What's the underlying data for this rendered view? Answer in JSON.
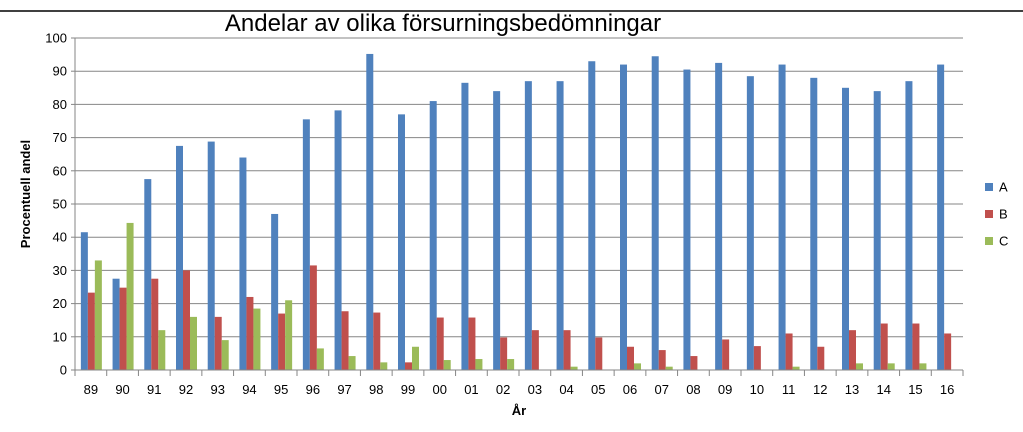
{
  "chart_data": {
    "type": "bar",
    "title": "Andelar av olika försurningsbedömningar",
    "xlabel": "År",
    "ylabel": "Procentuell andel",
    "ylim": [
      0,
      100
    ],
    "yticks": [
      "0",
      "10",
      "20",
      "30",
      "40",
      "50",
      "60",
      "70",
      "80",
      "90",
      "100"
    ],
    "grid": true,
    "legend": "right",
    "categories": [
      "89",
      "90",
      "91",
      "92",
      "93",
      "94",
      "95",
      "96",
      "97",
      "98",
      "99",
      "00",
      "01",
      "02",
      "03",
      "04",
      "05",
      "06",
      "07",
      "08",
      "09",
      "10",
      "11",
      "12",
      "13",
      "14",
      "15",
      "16"
    ],
    "series": [
      {
        "name": "A",
        "color": "#4F81BD",
        "values": [
          41.5,
          27.5,
          57.5,
          67.5,
          68.8,
          64,
          47,
          75.5,
          78.2,
          95.2,
          77,
          81,
          86.5,
          84,
          87,
          87,
          93,
          92,
          94.5,
          90.5,
          92.5,
          88.5,
          92,
          88,
          85,
          84,
          87,
          92
        ]
      },
      {
        "name": "B",
        "color": "#C0504D",
        "values": [
          23.3,
          24.8,
          27.5,
          30,
          16,
          22,
          17,
          31.5,
          17.7,
          17.3,
          2.3,
          15.8,
          15.8,
          9.8,
          12,
          12,
          9.8,
          7,
          6,
          4.2,
          9.2,
          7.2,
          11,
          7,
          12,
          14,
          14,
          11
        ]
      },
      {
        "name": "C",
        "color": "#9BBB59",
        "values": [
          33,
          44.3,
          12,
          16,
          9,
          18.5,
          21,
          6.5,
          4.2,
          2.3,
          7,
          3,
          3.3,
          3.3,
          0,
          1,
          0,
          2,
          1,
          0,
          0,
          0,
          1,
          0,
          2,
          2,
          2,
          0
        ]
      }
    ]
  }
}
